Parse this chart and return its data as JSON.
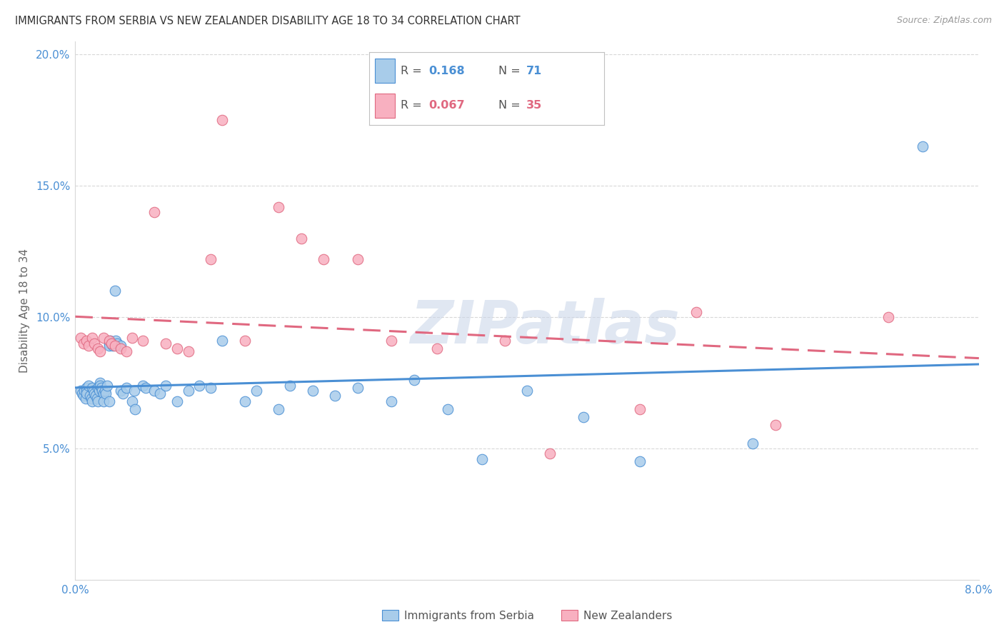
{
  "title": "IMMIGRANTS FROM SERBIA VS NEW ZEALANDER DISABILITY AGE 18 TO 34 CORRELATION CHART",
  "source": "Source: ZipAtlas.com",
  "ylabel": "Disability Age 18 to 34",
  "x_min": 0.0,
  "x_max": 0.08,
  "y_min": 0.0,
  "y_max": 0.205,
  "x_ticks": [
    0.0,
    0.02,
    0.04,
    0.06,
    0.08
  ],
  "x_tick_labels": [
    "0.0%",
    "",
    "",
    "",
    "8.0%"
  ],
  "y_ticks": [
    0.0,
    0.05,
    0.1,
    0.15,
    0.2
  ],
  "y_tick_labels": [
    "",
    "5.0%",
    "10.0%",
    "15.0%",
    "20.0%"
  ],
  "R_blue": "0.168",
  "N_blue": "71",
  "R_pink": "0.067",
  "N_pink": "35",
  "blue_scatter_x": [
    0.0005,
    0.0006,
    0.0007,
    0.0008,
    0.0009,
    0.001,
    0.001,
    0.001,
    0.0012,
    0.0013,
    0.0014,
    0.0015,
    0.0015,
    0.0016,
    0.0017,
    0.0018,
    0.0019,
    0.002,
    0.002,
    0.0021,
    0.0022,
    0.0022,
    0.0023,
    0.0024,
    0.0025,
    0.0025,
    0.0026,
    0.0027,
    0.0028,
    0.003,
    0.003,
    0.003,
    0.0031,
    0.0032,
    0.0033,
    0.0035,
    0.0036,
    0.0037,
    0.004,
    0.004,
    0.0042,
    0.0045,
    0.005,
    0.0052,
    0.0053,
    0.006,
    0.0062,
    0.007,
    0.0075,
    0.008,
    0.009,
    0.01,
    0.011,
    0.012,
    0.013,
    0.015,
    0.016,
    0.018,
    0.019,
    0.021,
    0.023,
    0.025,
    0.028,
    0.03,
    0.033,
    0.036,
    0.04,
    0.045,
    0.05,
    0.06,
    0.075
  ],
  "blue_scatter_y": [
    0.072,
    0.071,
    0.07,
    0.072,
    0.069,
    0.073,
    0.072,
    0.071,
    0.074,
    0.07,
    0.069,
    0.073,
    0.068,
    0.072,
    0.071,
    0.07,
    0.069,
    0.073,
    0.068,
    0.072,
    0.075,
    0.074,
    0.073,
    0.072,
    0.071,
    0.068,
    0.072,
    0.071,
    0.074,
    0.09,
    0.089,
    0.068,
    0.091,
    0.09,
    0.089,
    0.11,
    0.091,
    0.09,
    0.089,
    0.072,
    0.071,
    0.073,
    0.068,
    0.072,
    0.065,
    0.074,
    0.073,
    0.072,
    0.071,
    0.074,
    0.068,
    0.072,
    0.074,
    0.073,
    0.091,
    0.068,
    0.072,
    0.065,
    0.074,
    0.072,
    0.07,
    0.073,
    0.068,
    0.076,
    0.065,
    0.046,
    0.072,
    0.062,
    0.045,
    0.052,
    0.165
  ],
  "pink_scatter_x": [
    0.0005,
    0.0007,
    0.001,
    0.0012,
    0.0015,
    0.0017,
    0.002,
    0.0022,
    0.0025,
    0.003,
    0.0032,
    0.0035,
    0.004,
    0.0045,
    0.005,
    0.006,
    0.007,
    0.008,
    0.009,
    0.01,
    0.012,
    0.013,
    0.015,
    0.018,
    0.02,
    0.022,
    0.025,
    0.028,
    0.032,
    0.038,
    0.042,
    0.05,
    0.055,
    0.062,
    0.072
  ],
  "pink_scatter_y": [
    0.092,
    0.09,
    0.091,
    0.089,
    0.092,
    0.09,
    0.088,
    0.087,
    0.092,
    0.091,
    0.09,
    0.089,
    0.088,
    0.087,
    0.092,
    0.091,
    0.14,
    0.09,
    0.088,
    0.087,
    0.122,
    0.175,
    0.091,
    0.142,
    0.13,
    0.122,
    0.122,
    0.091,
    0.088,
    0.091,
    0.048,
    0.065,
    0.102,
    0.059,
    0.1
  ],
  "blue_line_color": "#4a8fd4",
  "pink_line_color": "#e06880",
  "blue_scatter_face": "#a8ccea",
  "blue_scatter_edge": "#4a8fd4",
  "pink_scatter_face": "#f8b0c0",
  "pink_scatter_edge": "#e06880",
  "grid_color": "#d8d8d8",
  "axis_tick_color": "#4a8fd4",
  "title_color": "#333333",
  "source_color": "#999999",
  "watermark": "ZIPatlas",
  "watermark_color": "#c8d4e8",
  "legend_label_blue": "Immigrants from Serbia",
  "legend_label_pink": "New Zealanders",
  "background_color": "#ffffff"
}
